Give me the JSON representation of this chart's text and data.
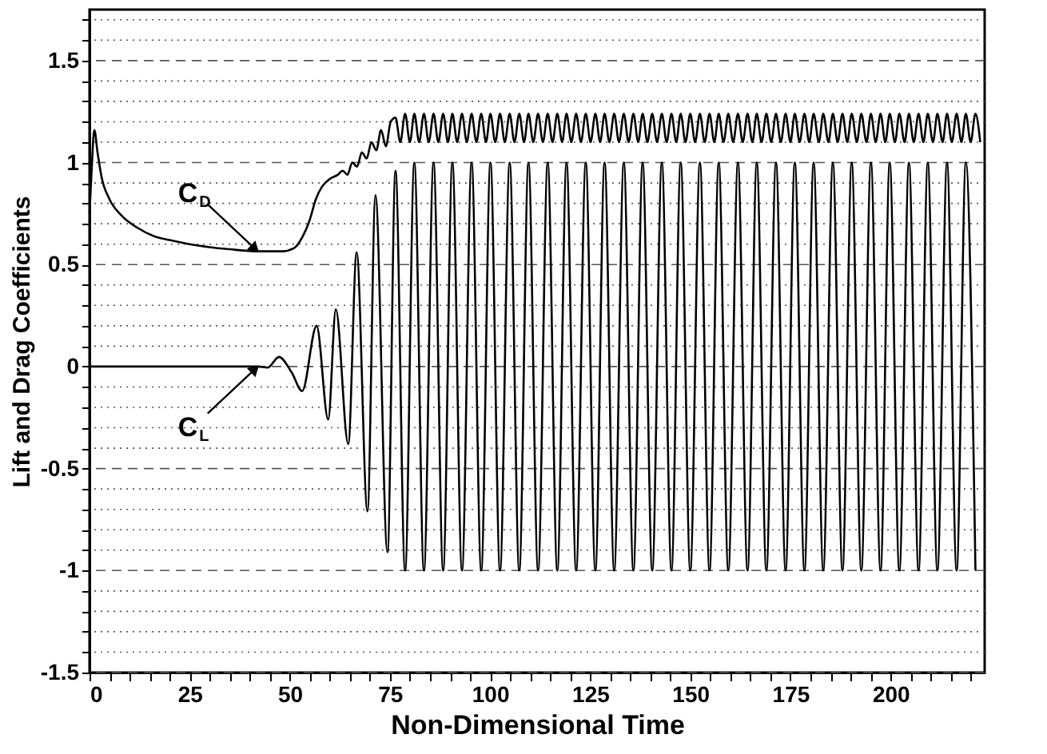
{
  "chart_data": {
    "type": "line",
    "xlabel": "Non-Dimensional Time",
    "ylabel": "Lift and Drag Coefficients",
    "xlim": [
      0,
      223.5
    ],
    "ylim": [
      -1.5,
      1.75
    ],
    "xticks": [
      0,
      {
        "value": 5,
        "label": null
      },
      {
        "value": 10,
        "label": null
      },
      {
        "value": 15,
        "label": null
      },
      {
        "value": 20,
        "label": null
      },
      25,
      {
        "value": 30,
        "label": null
      },
      {
        "value": 35,
        "label": null
      },
      {
        "value": 40,
        "label": null
      },
      {
        "value": 45,
        "label": null
      },
      50,
      {
        "value": 55,
        "label": null
      },
      {
        "value": 60,
        "label": null
      },
      {
        "value": 65,
        "label": null
      },
      {
        "value": 70,
        "label": null
      },
      75,
      {
        "value": 80,
        "label": null
      },
      {
        "value": 85,
        "label": null
      },
      {
        "value": 90,
        "label": null
      },
      {
        "value": 95,
        "label": null
      },
      100,
      {
        "value": 105,
        "label": null
      },
      {
        "value": 110,
        "label": null
      },
      {
        "value": 115,
        "label": null
      },
      {
        "value": 120,
        "label": null
      },
      125,
      {
        "value": 130,
        "label": null
      },
      {
        "value": 135,
        "label": null
      },
      {
        "value": 140,
        "label": null
      },
      {
        "value": 145,
        "label": null
      },
      150,
      {
        "value": 155,
        "label": null
      },
      {
        "value": 160,
        "label": null
      },
      {
        "value": 165,
        "label": null
      },
      {
        "value": 170,
        "label": null
      },
      175,
      {
        "value": 180,
        "label": null
      },
      {
        "value": 185,
        "label": null
      },
      {
        "value": 190,
        "label": null
      },
      {
        "value": 195,
        "label": null
      },
      200,
      {
        "value": 205,
        "label": null
      },
      {
        "value": 210,
        "label": null
      },
      {
        "value": 215,
        "label": null
      },
      {
        "value": 220,
        "label": null
      }
    ],
    "yticks": [
      -1.5,
      {
        "value": -1.4,
        "label": null
      },
      {
        "value": -1.3,
        "label": null
      },
      {
        "value": -1.2,
        "label": null
      },
      {
        "value": -1.1,
        "label": null
      },
      -1,
      {
        "value": -0.9,
        "label": null
      },
      {
        "value": -0.8,
        "label": null
      },
      {
        "value": -0.7,
        "label": null
      },
      {
        "value": -0.6,
        "label": null
      },
      -0.5,
      {
        "value": -0.4,
        "label": null
      },
      {
        "value": -0.3,
        "label": null
      },
      {
        "value": -0.2,
        "label": null
      },
      {
        "value": -0.1,
        "label": null
      },
      0,
      {
        "value": 0.1,
        "label": null
      },
      {
        "value": 0.2,
        "label": null
      },
      {
        "value": 0.3,
        "label": null
      },
      {
        "value": 0.4,
        "label": null
      },
      0.5,
      {
        "value": 0.6,
        "label": null
      },
      {
        "value": 0.7,
        "label": null
      },
      {
        "value": 0.8,
        "label": null
      },
      {
        "value": 0.9,
        "label": null
      },
      1,
      {
        "value": 1.1,
        "label": null
      },
      {
        "value": 1.2,
        "label": null
      },
      {
        "value": 1.3,
        "label": null
      },
      {
        "value": 1.4,
        "label": null
      },
      1.5,
      {
        "value": 1.6,
        "label": null
      },
      {
        "value": 1.7,
        "label": null
      }
    ],
    "grid": "y",
    "line_style": "solid",
    "marker": "none",
    "series": [
      {
        "color": "#000000",
        "x": [
          0,
          0.5,
          1.2,
          2,
          3,
          5,
          8,
          12,
          16,
          20,
          25,
          30,
          35,
          42,
          48,
          51,
          53,
          55,
          56.5,
          58,
          60,
          62,
          63.2,
          64.4,
          65.6,
          66.8,
          68.0,
          69.2,
          70.4,
          71.6,
          72.8,
          74.0,
          75.2,
          76.4,
          77.6,
          78.8,
          80.0,
          81.1,
          82.3,
          83.5,
          84.7,
          85.9,
          87.1,
          88.3,
          89.5,
          90.6,
          91.8,
          93.0,
          94.2,
          95.4,
          96.6,
          97.8,
          99.0,
          100.1,
          101.3,
          102.5,
          103.7,
          104.9,
          106.1,
          107.3,
          108.5,
          109.6,
          110.8,
          112.0,
          113.2,
          114.4,
          115.6,
          116.8,
          118.0,
          119.1,
          120.3,
          121.5,
          122.7,
          123.9,
          125.1,
          126.3,
          127.5,
          128.6,
          129.8,
          131.0,
          132.2,
          133.4,
          134.6,
          135.8,
          137.0,
          138.1,
          139.3,
          140.5,
          141.7,
          142.9,
          144.1,
          145.3,
          146.5,
          147.6,
          148.8,
          150.0,
          151.2,
          152.4,
          153.6,
          154.8,
          156.0,
          157.1,
          158.3,
          159.5,
          160.7,
          161.9,
          163.1,
          164.3,
          165.5,
          166.6,
          167.8,
          169.0,
          170.2,
          171.4,
          172.6,
          173.8,
          175.0,
          176.1,
          177.3,
          178.5,
          179.7,
          180.8,
          182.1,
          183.2,
          184.5,
          185.6,
          186.8,
          188.0,
          189.2,
          190.3,
          191.6,
          192.7,
          194.0,
          195.1,
          196.3,
          197.5,
          198.7,
          199.8,
          201.1,
          202.2,
          203.5,
          204.6,
          205.8,
          207.0,
          208.2,
          209.3,
          210.6,
          211.7,
          213.0,
          214.1,
          215.3,
          216.5,
          217.7,
          218.8,
          220.0,
          221.2,
          222.4
        ],
        "values": [
          0.75,
          0.95,
          1.16,
          1.05,
          0.93,
          0.82,
          0.74,
          0.68,
          0.64,
          0.62,
          0.6,
          0.585,
          0.575,
          0.565,
          0.565,
          0.58,
          0.63,
          0.72,
          0.82,
          0.88,
          0.92,
          0.94,
          0.96,
          0.94,
          1.0,
          0.98,
          1.05,
          1.02,
          1.1,
          1.06,
          1.16,
          1.08,
          1.2,
          1.22,
          1.1,
          1.24,
          1.1,
          1.24,
          1.1,
          1.24,
          1.1,
          1.24,
          1.1,
          1.24,
          1.1,
          1.24,
          1.1,
          1.24,
          1.1,
          1.24,
          1.1,
          1.24,
          1.1,
          1.24,
          1.1,
          1.24,
          1.1,
          1.24,
          1.1,
          1.24,
          1.1,
          1.24,
          1.1,
          1.24,
          1.1,
          1.24,
          1.1,
          1.24,
          1.1,
          1.24,
          1.1,
          1.24,
          1.1,
          1.24,
          1.1,
          1.24,
          1.1,
          1.24,
          1.1,
          1.24,
          1.1,
          1.24,
          1.1,
          1.24,
          1.1,
          1.24,
          1.1,
          1.24,
          1.1,
          1.24,
          1.1,
          1.24,
          1.1,
          1.24,
          1.1,
          1.24,
          1.1,
          1.24,
          1.1,
          1.24,
          1.1,
          1.24,
          1.1,
          1.24,
          1.1,
          1.24,
          1.1,
          1.24,
          1.1,
          1.24,
          1.1,
          1.24,
          1.1,
          1.24,
          1.1,
          1.24,
          1.1,
          1.24,
          1.1,
          1.24,
          1.1,
          1.24,
          1.1,
          1.24,
          1.1,
          1.24,
          1.1,
          1.24,
          1.1,
          1.24,
          1.1,
          1.24,
          1.1,
          1.24,
          1.1,
          1.24,
          1.1,
          1.24,
          1.1,
          1.24,
          1.1,
          1.24,
          1.1,
          1.24,
          1.1,
          1.24,
          1.1,
          1.24,
          1.1,
          1.24,
          1.1,
          1.24,
          1.1,
          1.24,
          1.1,
          1.24,
          1.1
        ]
      },
      {
        "color": "#000000",
        "x": [
          0,
          38,
          42,
          44.5,
          47.3,
          50.5,
          53.1,
          56.7,
          59.6,
          61.5,
          64.6,
          66.7,
          69.4,
          71.4,
          74.4,
          76.4,
          78.8,
          81.1,
          83.5,
          85.9,
          88.3,
          90.6,
          93.0,
          95.4,
          97.8,
          100.1,
          102.5,
          104.9,
          107.3,
          109.6,
          112.0,
          114.4,
          116.8,
          119.1,
          121.5,
          123.9,
          126.3,
          128.6,
          131.0,
          133.4,
          135.8,
          138.1,
          140.5,
          142.9,
          145.3,
          147.6,
          150.0,
          152.4,
          154.8,
          157.1,
          159.5,
          161.9,
          164.3,
          166.6,
          169.0,
          171.4,
          173.8,
          176.1,
          178.5,
          180.8,
          183.2,
          185.6,
          188.0,
          190.3,
          192.7,
          195.1,
          197.5,
          199.8,
          202.2,
          204.6,
          207.0,
          209.3,
          211.7,
          214.1,
          216.5,
          218.8,
          221.2
        ],
        "values": [
          0,
          0,
          0,
          -0.005,
          0.047,
          -0.03,
          -0.12,
          0.2,
          -0.26,
          0.28,
          -0.38,
          0.56,
          -0.71,
          0.84,
          -0.91,
          0.96,
          -1,
          1,
          -1,
          1,
          -1,
          1,
          -1,
          1,
          -1,
          1,
          -1,
          1,
          -1,
          1,
          -1,
          1,
          -1,
          1,
          -1,
          1,
          -1,
          1,
          -1,
          1,
          -1,
          1,
          -1,
          1,
          -1,
          1,
          -1,
          1,
          -1,
          1,
          -1,
          1,
          -1,
          1,
          -1,
          1,
          -1,
          1,
          -1,
          1,
          -1,
          1,
          -1,
          1,
          -1,
          1,
          -1,
          1,
          -1,
          1,
          -1,
          1,
          -1,
          1,
          -1,
          1,
          -1
        ]
      }
    ],
    "annotations": [
      {
        "text": "C$_{D}$",
        "x": 42,
        "y": 0.565
      },
      {
        "text": "C$_{L}$",
        "x": 42,
        "y": 0
      }
    ]
  }
}
